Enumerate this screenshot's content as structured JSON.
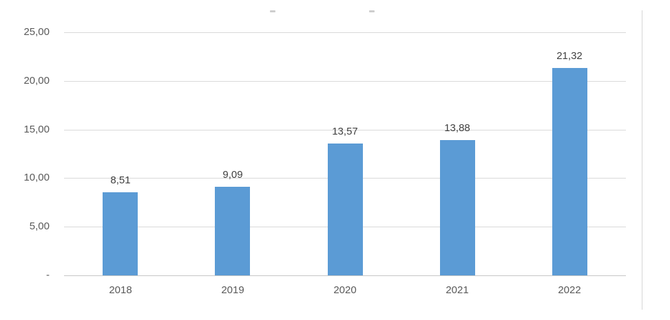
{
  "chart_data": {
    "type": "bar",
    "title": "",
    "title_marks": [
      "dash-fragment",
      "dash-fragment"
    ],
    "categories": [
      "2018",
      "2019",
      "2020",
      "2021",
      "2022"
    ],
    "values": [
      8.51,
      9.09,
      13.57,
      13.88,
      21.32
    ],
    "value_labels": [
      "8,51",
      "9,09",
      "13,57",
      "13,88",
      "21,32"
    ],
    "xlabel": "",
    "ylabel": "",
    "ylim": [
      0,
      25
    ],
    "yticks": [
      {
        "value": 25,
        "label": "25,00"
      },
      {
        "value": 20,
        "label": "20,00"
      },
      {
        "value": 15,
        "label": "15,00"
      },
      {
        "value": 10,
        "label": "10,00"
      },
      {
        "value": 5,
        "label": "5,00"
      },
      {
        "value": 0,
        "label": "-"
      }
    ],
    "grid": true,
    "legend": "none",
    "decimal_separator": ",",
    "colors": {
      "bar": "#5b9bd5",
      "value_label_text": "#404040",
      "axis_tick_text": "#595959",
      "gridline": "#d9d9d9",
      "axis_line": "#c6c6c6",
      "chart_border": "#d6d6d6"
    }
  }
}
